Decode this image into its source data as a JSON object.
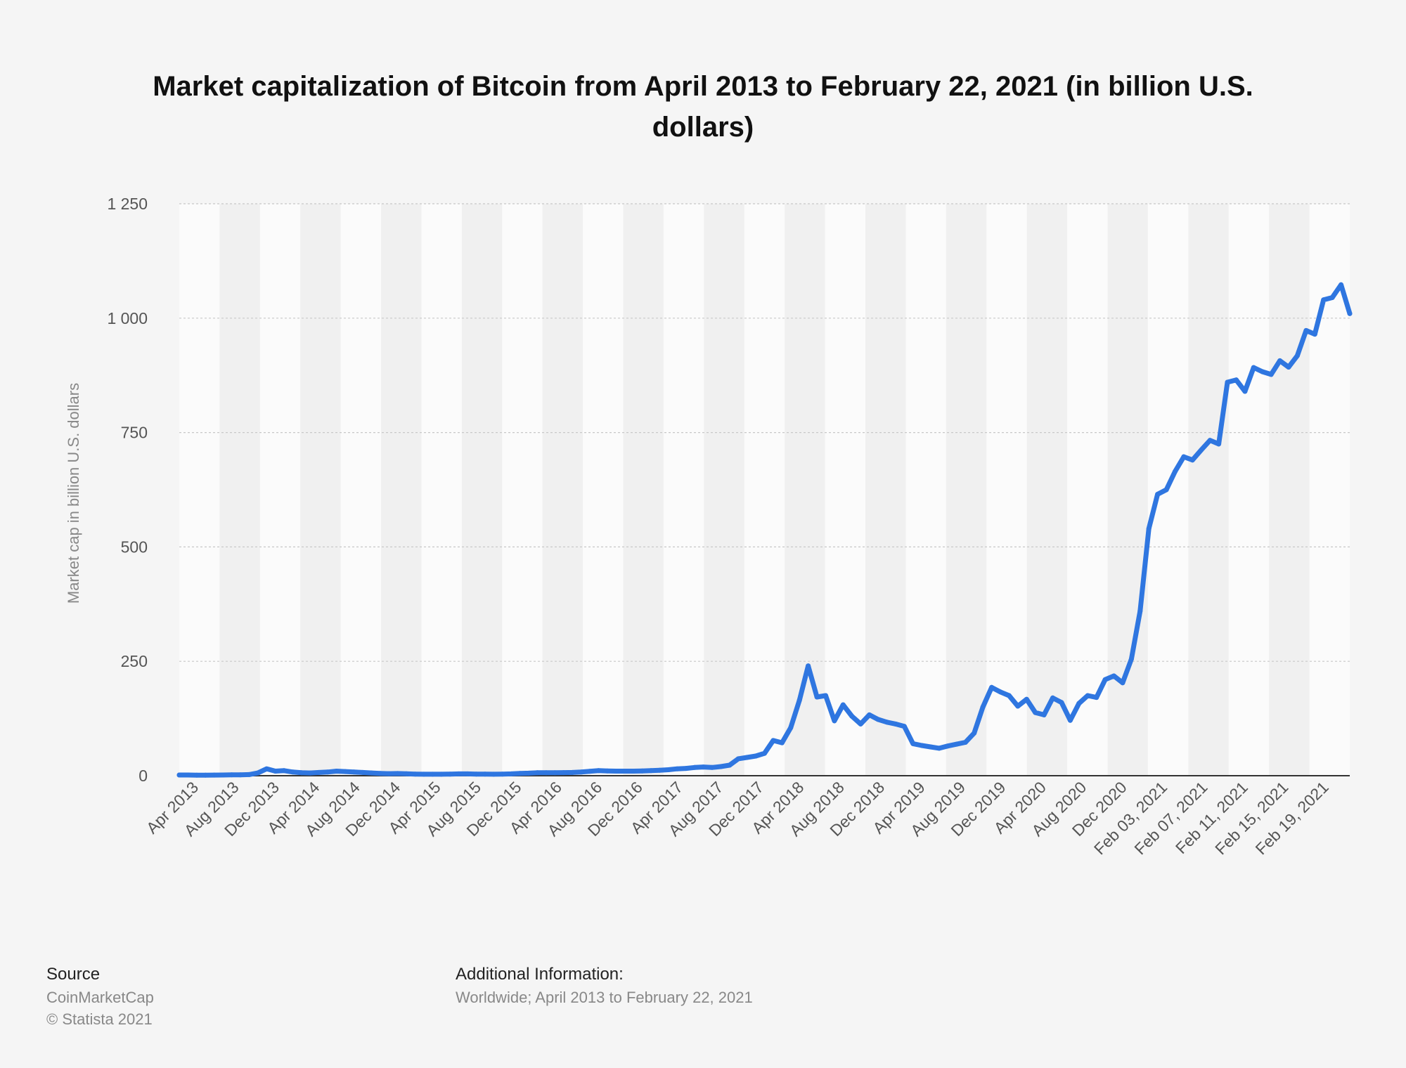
{
  "title": "Market capitalization of Bitcoin from April 2013 to February 22, 2021 (in billion U.S. dollars)",
  "footer": {
    "source_heading": "Source",
    "source_lines": [
      "CoinMarketCap",
      "© Statista 2021"
    ],
    "additional_heading": "Additional Information:",
    "additional_text": "Worldwide; April 2013 to February 22, 2021"
  },
  "colors": {
    "line": "#2f76e0",
    "background": "#f5f5f5",
    "band_light": "#fbfbfb",
    "band_dark": "#f0f0f0",
    "grid": "#c8c8c8",
    "axis": "#333333",
    "tick_label": "#555555",
    "ylabel": "#888888"
  },
  "chart_data": {
    "type": "line",
    "title": "Market capitalization of Bitcoin from April 2013 to February 22, 2021 (in billion U.S. dollars)",
    "xlabel": "",
    "ylabel": "Market cap in billion U.S. dollars",
    "ylim": [
      0,
      1250
    ],
    "yticks": [
      0,
      250,
      500,
      750,
      1000,
      1250
    ],
    "ytick_labels": [
      "0",
      "250",
      "500",
      "750",
      "1 000",
      "1 250"
    ],
    "xtick_labels": [
      "Apr 2013",
      "Aug 2013",
      "Dec 2013",
      "Apr 2014",
      "Aug 2014",
      "Dec 2014",
      "Apr 2015",
      "Aug 2015",
      "Dec 2015",
      "Apr 2016",
      "Aug 2016",
      "Dec 2016",
      "Apr 2017",
      "Aug 2017",
      "Dec 2017",
      "Apr 2018",
      "Aug 2018",
      "Dec 2018",
      "Apr 2019",
      "Aug 2019",
      "Dec 2019",
      "Apr 2020",
      "Aug 2020",
      "Dec 2020",
      "Feb 03, 2021",
      "Feb 07, 2021",
      "Feb 11, 2021",
      "Feb 15, 2021",
      "Feb 19, 2021"
    ],
    "grid": true,
    "legend": "none",
    "series": [
      {
        "values": [
          1.5,
          1.5,
          1.2,
          1.3,
          1.4,
          1.5,
          1.8,
          1.9,
          2.5,
          6,
          15,
          10,
          11,
          8,
          6.5,
          6,
          7,
          8,
          10,
          9,
          8,
          7,
          6,
          5,
          4.5,
          4.8,
          4.2,
          3.6,
          3.3,
          3.2,
          3.3,
          3.5,
          4,
          4,
          3.5,
          3.4,
          3.3,
          3.5,
          4,
          5,
          5.5,
          6.5,
          6.5,
          6.5,
          6.8,
          7,
          8,
          9.5,
          11,
          10.5,
          10,
          10,
          10,
          10.5,
          11,
          12,
          13,
          15,
          16,
          18,
          19,
          18,
          20,
          23,
          37,
          40,
          43,
          49,
          77,
          72,
          105,
          165,
          240,
          172,
          175,
          120,
          155,
          130,
          113,
          133,
          123,
          117,
          113,
          108,
          70,
          66,
          63,
          60,
          65,
          69,
          73,
          93,
          150,
          193,
          183,
          175,
          152,
          167,
          138,
          133,
          170,
          160,
          121,
          158,
          175,
          171,
          210,
          218,
          203,
          255,
          360,
          540,
          615,
          625,
          665,
          697,
          690,
          712,
          733,
          725,
          860,
          865,
          840,
          892,
          883,
          877,
          907,
          893,
          918,
          973,
          965,
          1040,
          1045,
          1073,
          1010
        ]
      }
    ]
  }
}
